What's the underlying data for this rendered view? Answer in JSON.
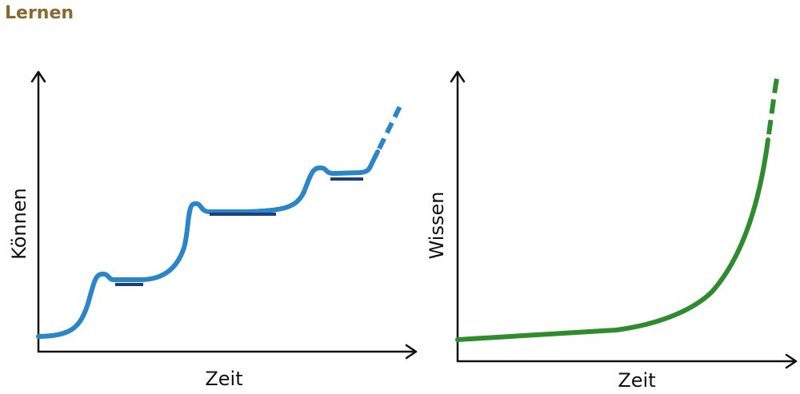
{
  "title": "Lernen",
  "diagrams": [
    {
      "y_label": "Können",
      "x_label": "Zeit"
    },
    {
      "y_label": "Wissen",
      "x_label": "Zeit"
    }
  ]
}
